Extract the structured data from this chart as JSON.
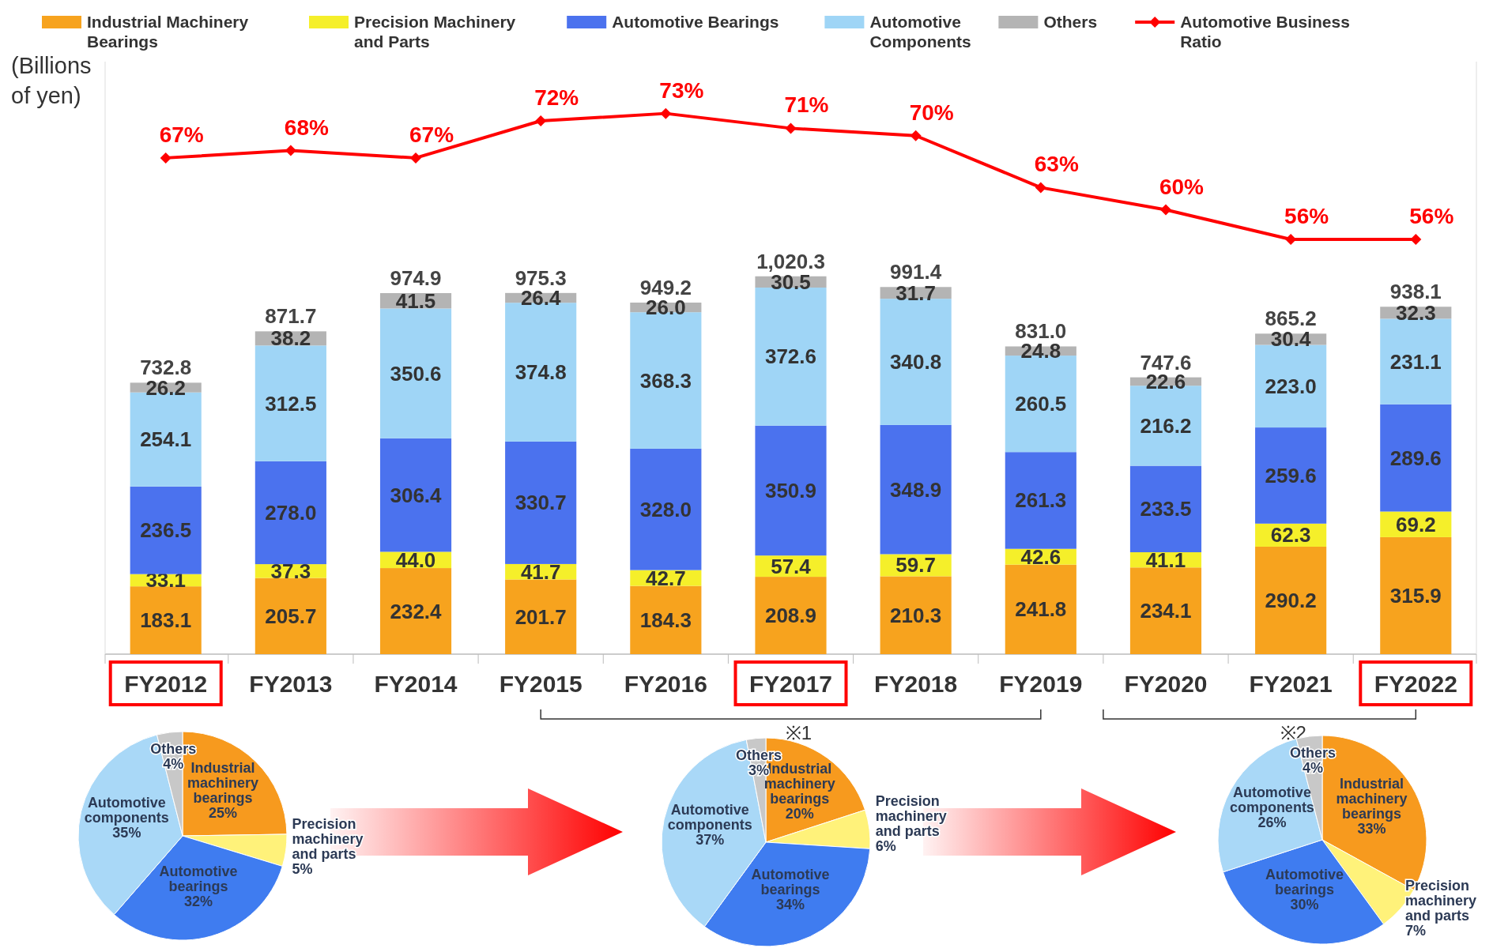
{
  "chart_data": [
    {
      "type": "bar",
      "stacked": true,
      "ylabel": "(Billions of yen)",
      "legend": "top",
      "tick_labels": "x",
      "ylim": [
        0,
        1600
      ],
      "y2lim": [
        0,
        80
      ],
      "categories": [
        "FY2012",
        "FY2013",
        "FY2014",
        "FY2015",
        "FY2016",
        "FY2017",
        "FY2018",
        "FY2019",
        "FY2020",
        "FY2021",
        "FY2022"
      ],
      "series": [
        {
          "name": "Industrial Machinery Bearings",
          "color": "#f7a31e",
          "values": [
            183.1,
            205.7,
            232.4,
            201.7,
            184.3,
            208.9,
            210.3,
            241.8,
            234.1,
            290.2,
            315.9
          ],
          "value_labels": [
            "183.1",
            "205.7",
            "232.4",
            "201.7",
            "184.3",
            "208.9",
            "210.3",
            "241.8",
            "234.1",
            "290.2",
            "315.9"
          ]
        },
        {
          "name": "Precision Machinery and Parts",
          "color": "#f5ef2a",
          "values": [
            33.1,
            37.3,
            44.0,
            41.7,
            42.7,
            57.4,
            59.7,
            42.6,
            41.1,
            62.3,
            69.2
          ],
          "value_labels": [
            "33.1",
            "37.3",
            "44.0",
            "41.7",
            "42.7",
            "57.4",
            "59.7",
            "42.6",
            "41.1",
            "62.3",
            "69.2"
          ]
        },
        {
          "name": "Automotive Bearings",
          "color": "#4b72ee",
          "values": [
            236.5,
            278.0,
            306.4,
            330.7,
            328.0,
            350.9,
            348.9,
            261.3,
            233.5,
            259.6,
            289.6
          ],
          "value_labels": [
            "236.5",
            "278.0",
            "306.4",
            "330.7",
            "328.0",
            "350.9",
            "348.9",
            "261.3",
            "233.5",
            "259.6",
            "289.6"
          ]
        },
        {
          "name": "Automotive Components",
          "color": "#9fd5f6",
          "values": [
            254.1,
            312.5,
            350.6,
            374.8,
            368.3,
            372.6,
            340.8,
            260.5,
            216.2,
            223.0,
            231.1
          ],
          "value_labels": [
            "254.1",
            "312.5",
            "350.6",
            "374.8",
            "368.3",
            "372.6",
            "340.8",
            "260.5",
            "216.2",
            "223.0",
            "231.1"
          ]
        },
        {
          "name": "Others",
          "color": "#b4b4b4",
          "values": [
            26.2,
            38.2,
            41.5,
            26.4,
            26.0,
            30.5,
            31.7,
            24.8,
            22.6,
            30.4,
            32.3
          ],
          "value_labels": [
            "26.2",
            "38.2",
            "41.5",
            "26.4",
            "26.0",
            "30.5",
            "31.7",
            "24.8",
            "22.6",
            "30.4",
            "32.3"
          ]
        },
        {
          "name": "Automotive Business Ratio",
          "type": "line",
          "axis": "y2",
          "color": "#ff0000",
          "marker": "diamond",
          "values": [
            67,
            68,
            67,
            72,
            73,
            71,
            70,
            63,
            60,
            56,
            56
          ],
          "value_labels": [
            "67%",
            "68%",
            "67%",
            "72%",
            "73%",
            "71%",
            "70%",
            "63%",
            "60%",
            "56%",
            "56%"
          ]
        }
      ],
      "totals": [
        "732.8",
        "871.7",
        "974.9",
        "975.3",
        "949.2",
        "1,020.3",
        "991.4",
        "831.0",
        "747.6",
        "865.2",
        "938.1"
      ],
      "annotations": [
        "※1",
        "※2"
      ]
    },
    {
      "type": "pie",
      "categories": [
        "Industrial machinery bearings",
        "Precision machinery and parts",
        "Automotive bearings",
        "Automotive components",
        "Others"
      ],
      "values": [
        25,
        5,
        32,
        35,
        4
      ],
      "value_labels": [
        "25%",
        "5%",
        "32%",
        "35%",
        "4%"
      ],
      "colors": [
        "#f79a1e",
        "#fff27a",
        "#3f7cf0",
        "#a9d8f7",
        "#c8c8c8"
      ]
    },
    {
      "type": "pie",
      "categories": [
        "Industrial machinery bearings",
        "Precision machinery and parts",
        "Automotive bearings",
        "Automotive components",
        "Others"
      ],
      "values": [
        20,
        6,
        34,
        37,
        3
      ],
      "value_labels": [
        "20%",
        "6%",
        "34%",
        "37%",
        "3%"
      ],
      "colors": [
        "#f79a1e",
        "#fff27a",
        "#3f7cf0",
        "#a9d8f7",
        "#c8c8c8"
      ]
    },
    {
      "type": "pie",
      "categories": [
        "Industrial machinery bearings",
        "Precision machinery and parts",
        "Automotive bearings",
        "Automotive components",
        "Others"
      ],
      "values": [
        33,
        7,
        30,
        26,
        4
      ],
      "value_labels": [
        "33%",
        "7%",
        "30%",
        "26%",
        "4%"
      ],
      "colors": [
        "#f79a1e",
        "#fff27a",
        "#3f7cf0",
        "#a9d8f7",
        "#c8c8c8"
      ]
    }
  ]
}
